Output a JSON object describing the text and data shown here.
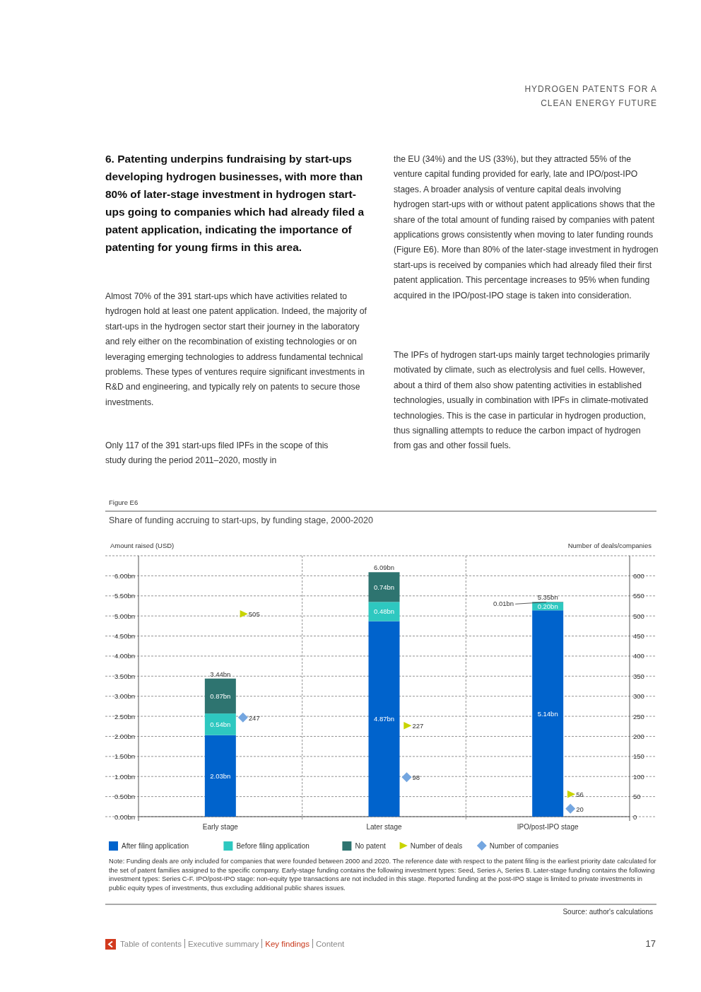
{
  "chart_data": {
    "type": "bar",
    "stacked": true,
    "title": "Share of funding accruing to start-ups, by funding stage, 2000-2020",
    "xlabel": null,
    "ylabel": "Amount raised (USD)",
    "y2label": "Number of deals/companies",
    "categories": [
      "Early stage",
      "Later stage",
      "IPO/post-IPO stage"
    ],
    "series": [
      {
        "name": "After filing application",
        "color": "#0063cc",
        "values": [
          2.03,
          4.87,
          5.14
        ],
        "value_labels": [
          "2.03bn",
          "4.87bn",
          "5.14bn"
        ]
      },
      {
        "name": "Before filing application",
        "color": "#2ec8c0",
        "values": [
          0.54,
          0.48,
          0.2
        ],
        "value_labels": [
          "0.54bn",
          "0.48bn",
          "0.20bn"
        ]
      },
      {
        "name": "No patent",
        "color": "#2e7470",
        "values": [
          0.87,
          0.74,
          0.01
        ],
        "value_labels": [
          "0.87bn",
          "0.74bn",
          "0.01bn"
        ]
      },
      {
        "name": "Number of deals",
        "type": "scatter",
        "marker": "triangle",
        "axis": "y2",
        "color": "#c8d400",
        "values": [
          505,
          227,
          56
        ],
        "value_labels": [
          "505",
          "227",
          "56"
        ]
      },
      {
        "name": "Number of companies",
        "type": "scatter",
        "marker": "diamond",
        "axis": "y2",
        "color": "#74a6e0",
        "values": [
          247,
          98,
          20
        ],
        "value_labels": [
          "247",
          "98",
          "20"
        ]
      }
    ],
    "totals": [
      "3.44bn",
      "6.09bn",
      "5.35bn"
    ],
    "ylim": [
      0,
      6.5
    ],
    "yticks": [
      {
        "value": 0,
        "label": "0.00bn"
      },
      {
        "value": 0.5,
        "label": "0.50bn"
      },
      {
        "value": 1,
        "label": "1.00bn"
      },
      {
        "value": 1.5,
        "label": "1.50bn"
      },
      {
        "value": 2,
        "label": "2.00bn"
      },
      {
        "value": 2.5,
        "label": "2.50bn"
      },
      {
        "value": 3,
        "label": "3.00bn"
      },
      {
        "value": 3.5,
        "label": "3.50bn"
      },
      {
        "value": 4,
        "label": "4.00bn"
      },
      {
        "value": 4.5,
        "label": "4.50bn"
      },
      {
        "value": 5,
        "label": "5.00bn"
      },
      {
        "value": 5.5,
        "label": "5.50bn"
      },
      {
        "value": 6,
        "label": "6.00bn"
      }
    ],
    "y2lim": [
      0,
      650
    ],
    "y2ticks": [
      0,
      50,
      100,
      150,
      200,
      250,
      300,
      350,
      400,
      450,
      500,
      550,
      600
    ],
    "grid": "y",
    "legend": "bottom",
    "annotations": [
      "HYDROGEN PATENTS FOR A CLEAN ENERGY FUTURE",
      "6.  Patenting underpins fundraising by start-ups developing hydrogen businesses, with more than 80% of later-stage investment in hydrogen start-ups going to companies which had already filed a patent application, indicating the importance of patenting for young firms in this area.",
      "Almost 70% of the 391 start-ups which have activities related to hydrogen hold at least one patent application. Indeed, the majority of start-ups in the hydrogen sector start their journey in the laboratory and rely either on the recombination of existing technologies or on leveraging emerging technologies to address fundamental technical problems. These types of ventures require significant investments in R&D and engineering, and typically rely on patents to secure those investments.",
      "Only 117 of the 391 start-ups filed IPFs in the scope of this study during the period 2011–2020, mostly in",
      "the EU (34%) and the US (33%), but they attracted 55% of the venture capital funding provided for early, late and IPO/post-IPO stages. A broader analysis of venture capital deals involving hydrogen start-ups with or without patent applications shows that the share of the total amount of funding raised by companies with patent applications grows consistently when moving to later funding rounds (Figure E6). More than 80% of the later-stage investment in hydrogen start-ups is received by companies which had already filed their first patent application. This percentage increases to 95% when funding acquired in the IPO/post-IPO stage is taken into consideration.",
      "The IPFs of hydrogen start-ups mainly target technologies primarily motivated by climate, such as electrolysis and fuel cells. However, about a third of them also show patenting activities in established technologies, usually in combination with IPFs in climate-motivated technologies. This is the case in particular in hydrogen production, thus signalling attempts to reduce the carbon impact of hydrogen from gas and other fossil fuels.",
      "Figure E6",
      "Note: Funding deals are only included for companies that were founded between 2000 and 2020. The reference date with respect to the patent filing is the earliest priority date calculated for the set of patent families assigned to the specific company. Early-stage funding contains the following investment types: Seed, Series A, Series B. Later-stage funding contains the following investment types: Series C-F. IPO/post-IPO stage: non-equity type transactions are not included in this stage. Reported funding at the post-IPO stage is limited to private investments in public equity types of investments, thus excluding additional public shares issues.",
      "Source: author's calculations",
      "Table of contents",
      "Executive summary",
      "Key findings",
      "Content",
      "17"
    ]
  }
}
